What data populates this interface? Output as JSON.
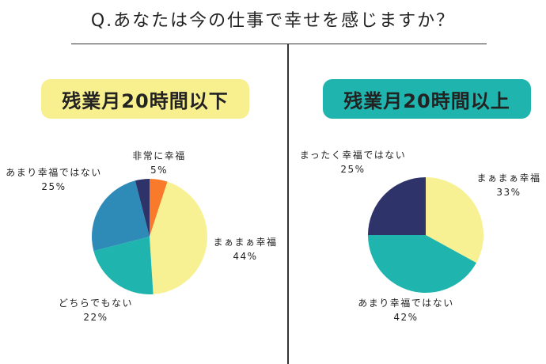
{
  "title": "Q.あなたは今の仕事で幸せを感じますか？",
  "chart_data": [
    {
      "type": "pie",
      "title": "残業月20時間以下",
      "start": "top",
      "direction": "clockwise",
      "slices": [
        {
          "label": "非常に幸福",
          "value": 5,
          "value_label": "5%",
          "color": "#f97a2a"
        },
        {
          "label": "まぁまぁ幸福",
          "value": 44,
          "value_label": "44%",
          "color": "#f7f193"
        },
        {
          "label": "どちらでもない",
          "value": 22,
          "value_label": "22%",
          "color": "#1fb5ae"
        },
        {
          "label": "あまり幸福ではない",
          "value": 25,
          "value_label": "25%",
          "color": "#2e8bb8"
        },
        {
          "value": 4,
          "color": "#2e336a"
        }
      ],
      "badge_color": "#f8f08e"
    },
    {
      "type": "pie",
      "title": "残業月20時間以上",
      "start": "top",
      "direction": "clockwise",
      "slices": [
        {
          "label": "まぁまぁ幸福",
          "value": 33,
          "value_label": "33%",
          "color": "#f7f193"
        },
        {
          "label": "あまり幸福ではない",
          "value": 42,
          "value_label": "42%",
          "color": "#1fb5ae"
        },
        {
          "label": "まったく幸福ではない",
          "value": 25,
          "value_label": "25%",
          "color": "#2e336a"
        }
      ],
      "badge_color": "#1fb5ae"
    }
  ]
}
